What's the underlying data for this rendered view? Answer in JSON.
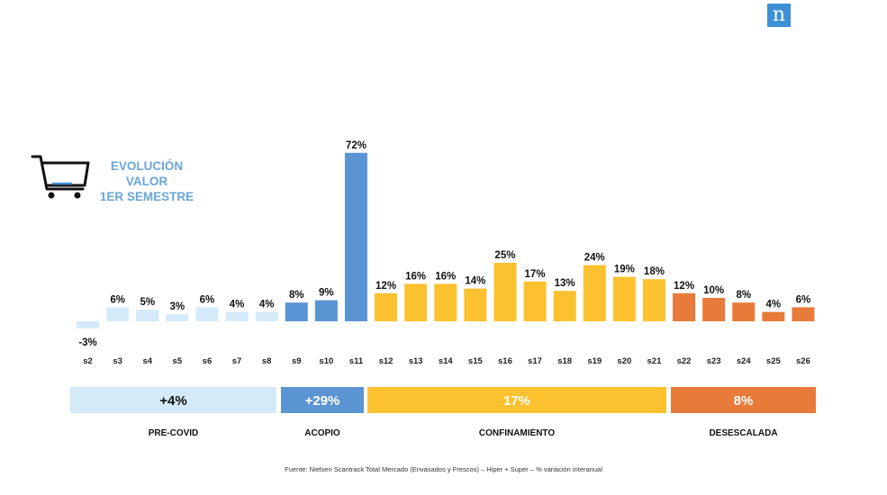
{
  "logo_letter": "n",
  "title_lines": [
    "EVOLUCIÓN",
    "VALOR",
    "1ER SEMESTRE"
  ],
  "colors": {
    "pre_covid": "#d4eaf8",
    "acopio": "#5b94d2",
    "confinamiento": "#fbc12e",
    "desescalada": "#e87b3a",
    "title": "#6aa5d8",
    "logo": "#3d8fd6"
  },
  "chart_data": {
    "type": "bar",
    "categories": [
      "s2",
      "s3",
      "s4",
      "s5",
      "s6",
      "s7",
      "s8",
      "s9",
      "s10",
      "s11",
      "s12",
      "s13",
      "s14",
      "s15",
      "s16",
      "s17",
      "s18",
      "s19",
      "s20",
      "s21",
      "s22",
      "s23",
      "s24",
      "s25",
      "s26"
    ],
    "values": [
      -3,
      6,
      5,
      3,
      6,
      4,
      4,
      8,
      9,
      72,
      12,
      16,
      16,
      14,
      25,
      17,
      13,
      24,
      19,
      18,
      12,
      10,
      8,
      4,
      6
    ],
    "value_labels": [
      "-3%",
      "6%",
      "5%",
      "3%",
      "6%",
      "4%",
      "4%",
      "8%",
      "9%",
      "72%",
      "12%",
      "16%",
      "16%",
      "14%",
      "25%",
      "17%",
      "13%",
      "24%",
      "19%",
      "18%",
      "12%",
      "10%",
      "8%",
      "4%",
      "6%"
    ],
    "bar_phase": [
      "pre_covid",
      "pre_covid",
      "pre_covid",
      "pre_covid",
      "pre_covid",
      "pre_covid",
      "pre_covid",
      "acopio",
      "acopio",
      "acopio",
      "confinamiento",
      "confinamiento",
      "confinamiento",
      "confinamiento",
      "confinamiento",
      "confinamiento",
      "confinamiento",
      "confinamiento",
      "confinamiento",
      "confinamiento",
      "desescalada",
      "desescalada",
      "desescalada",
      "desescalada",
      "desescalada"
    ],
    "phases": [
      {
        "key": "pre_covid",
        "name": "PRE-COVID",
        "value_label": "+4%",
        "first": 0,
        "last": 6
      },
      {
        "key": "acopio",
        "name": "ACOPIO",
        "value_label": "+29%",
        "first": 7,
        "last": 9
      },
      {
        "key": "confinamiento",
        "name": "CONFINAMIENTO",
        "value_label": "17%",
        "first": 10,
        "last": 19
      },
      {
        "key": "desescalada",
        "name": "DESESCALADA",
        "value_label": "8%",
        "first": 20,
        "last": 24
      }
    ]
  },
  "footnote": "Fuente: Nielsen Scantrack Total Mercado (Envasados y Frescos) – Hiper + Super – % variación interanual"
}
